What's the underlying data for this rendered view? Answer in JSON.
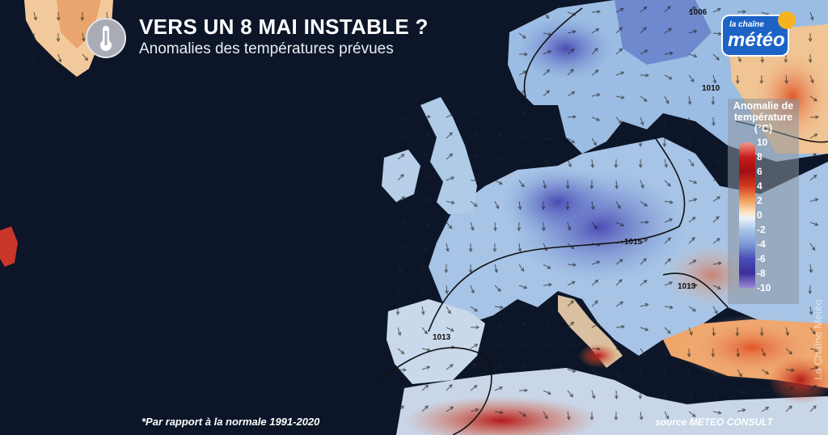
{
  "header": {
    "title": "VERS UN 8 MAI INSTABLE ?",
    "subtitle": "Anomalies des températures prévues",
    "icon": "thermometer-icon"
  },
  "logo": {
    "text_small": "la chaîne",
    "text_big": "météo"
  },
  "legend": {
    "title": "Anomalie de température (°C)",
    "ticks": [
      "10",
      "8",
      "6",
      "4",
      "2",
      "0",
      "-2",
      "-4",
      "-6",
      "-8",
      "-10"
    ],
    "colors": {
      "max": "#c91c1c",
      "neutral": "#eef3f8",
      "min": "#3a2f9c"
    }
  },
  "map": {
    "region": "Europe",
    "isobar_labels": [
      "1006",
      "1010",
      "1015",
      "1013",
      "1013"
    ],
    "ocean_color": "#0c1628"
  },
  "footer": {
    "footnote": "*Par rapport à la normale 1991-2020",
    "source": "source METEO CONSULT",
    "watermark": "La Chaîne Météo"
  }
}
